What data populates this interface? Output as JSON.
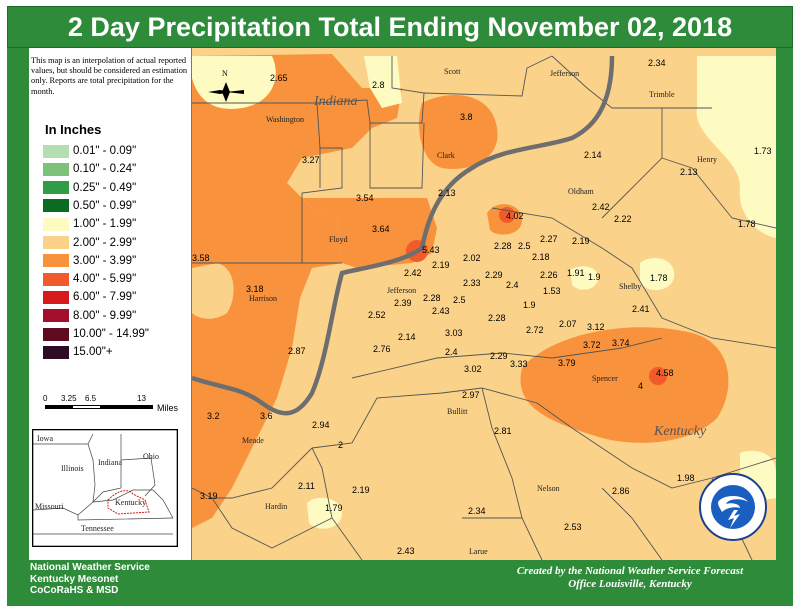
{
  "title": "2 Day Precipitation Total Ending November 02, 2018",
  "disclaimer": "This map is an interpolation of actual reported values, but should be considered an estimation only. Reports are total precipitation for the month.",
  "legend": {
    "title": "In Inches",
    "items": [
      {
        "label": "0.01\" - 0.09\"",
        "color": "#b6deb3"
      },
      {
        "label": "0.10\" - 0.24\"",
        "color": "#7cc27a"
      },
      {
        "label": "0.25\" - 0.49\"",
        "color": "#2f9d46"
      },
      {
        "label": "0.50\" - 0.99\"",
        "color": "#0b6b22"
      },
      {
        "label": "1.00\" - 1.99\"",
        "color": "#fdfbc2"
      },
      {
        "label": "2.00\" - 2.99\"",
        "color": "#fbd28a"
      },
      {
        "label": "3.00\" - 3.99\"",
        "color": "#f8923d"
      },
      {
        "label": "4.00\" - 5.99\"",
        "color": "#f15a2b"
      },
      {
        "label": "6.00\" - 7.99\"",
        "color": "#d7191c"
      },
      {
        "label": "8.00\" - 9.99\"",
        "color": "#a50f2d"
      },
      {
        "label": "10.00\" - 14.99\"",
        "color": "#5e0a21"
      },
      {
        "label": "15.00\"+",
        "color": "#2d0c24"
      }
    ]
  },
  "scale": {
    "ticks": [
      "0",
      "3.25",
      "6.5",
      "13"
    ],
    "unit": "Miles"
  },
  "inset": {
    "labels": [
      "Iowa",
      "Illinois",
      "Indiana",
      "Ohio",
      "Missouri",
      "Kentucky",
      "Tennessee"
    ]
  },
  "states": {
    "indiana": "Indiana",
    "kentucky": "Kentucky"
  },
  "counties": [
    "Scott",
    "Jefferson",
    "Trimble",
    "Washington",
    "Clark",
    "Henry",
    "Oldham",
    "Floyd",
    "Jefferson",
    "Shelby",
    "Harrison",
    "Spencer",
    "Bullitt",
    "Meade",
    "Hardin",
    "Nelson",
    "Larue"
  ],
  "values": [
    "2.65",
    "2.8",
    "2.34",
    "3.8",
    "2.14",
    "1.73",
    "3.27",
    "2.13",
    "3.54",
    "2.13",
    "2.42",
    "2.22",
    "4.02",
    "1.78",
    "3.64",
    "2.28",
    "2.5",
    "2.27",
    "2.19",
    "5.43",
    "2.02",
    "2.18",
    "3.58",
    "2.42",
    "2.19",
    "2.29",
    "2.33",
    "2.4",
    "2.26",
    "1.91",
    "1.9",
    "1.78",
    "3.18",
    "2.39",
    "2.28",
    "2.5",
    "1.53",
    "2.43",
    "1.9",
    "2.41",
    "2.52",
    "2.28",
    "2.72",
    "2.07",
    "3.12",
    "2.14",
    "3.03",
    "3.72",
    "3.74",
    "2.87",
    "2.76",
    "2.4",
    "2.29",
    "3.33",
    "3.79",
    "3.02",
    "4.58",
    "4",
    "2.97",
    "3.2",
    "3.6",
    "2.94",
    "2.81",
    "2",
    "2.11",
    "2.19",
    "1.98",
    "2.86",
    "3.19",
    "1.79",
    "2.34",
    "2.53",
    "2.43"
  ],
  "footer_left": [
    "National Weather Service",
    "Kentucky Mesonet",
    "CoCoRaHS & MSD"
  ],
  "footer_right": [
    "Created by the National Weather Service Forecast",
    "Office Louisville, Kentucky"
  ],
  "logo_text": "NATIONAL WEATHER SERVICE",
  "compass": "N"
}
